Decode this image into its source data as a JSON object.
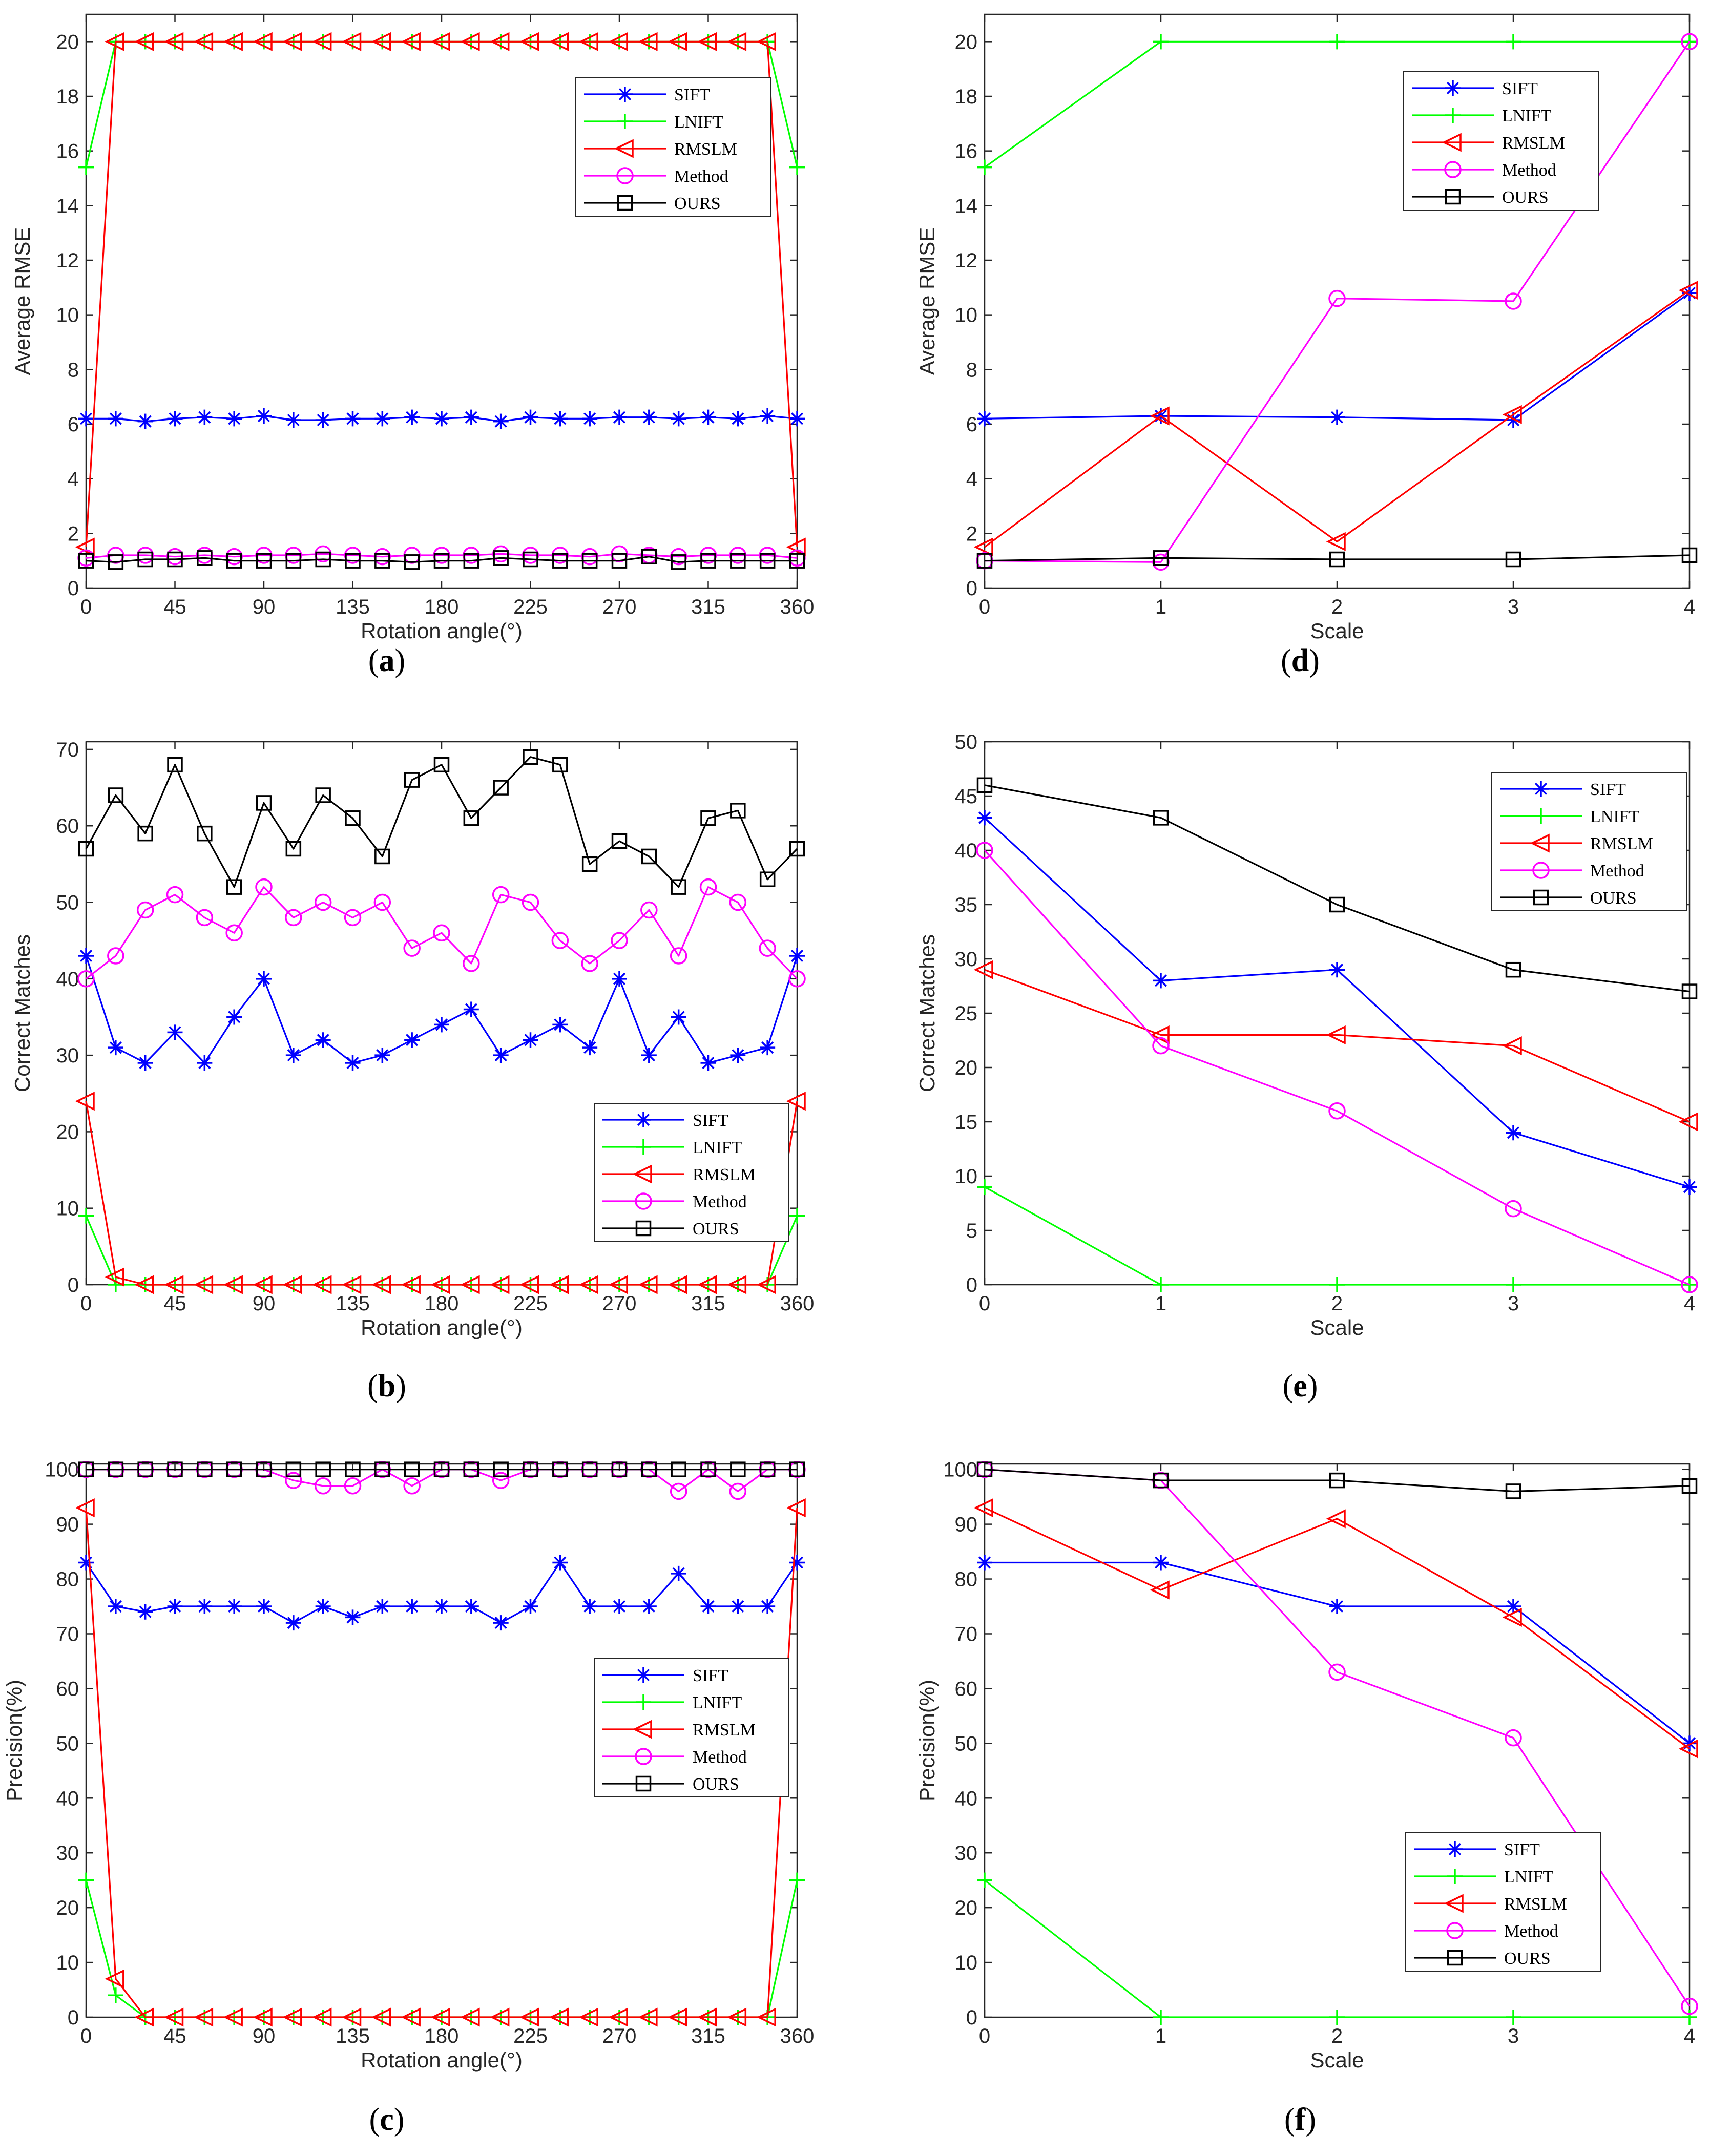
{
  "legend_labels": [
    "SIFT",
    "LNIFT",
    "RMSLM",
    "Method",
    "OURS"
  ],
  "series_colors": {
    "SIFT": "#0000ff",
    "LNIFT": "#00ff00",
    "RMSLM": "#ff0000",
    "Method": "#ff00ff",
    "OURS": "#000000"
  },
  "series_markers": {
    "SIFT": "asterisk",
    "LNIFT": "plus",
    "RMSLM": "triangle-left",
    "Method": "circle",
    "OURS": "square"
  },
  "chart_data": [
    {
      "id": "a",
      "caption_letter": "a",
      "type": "line",
      "xlabel": "Rotation angle(°)",
      "ylabel": "Average RMSE",
      "xlim": [
        0,
        360
      ],
      "ylim": [
        0,
        21
      ],
      "xticks": [
        0,
        45,
        90,
        135,
        180,
        225,
        270,
        315,
        360
      ],
      "yticks": [
        0,
        2,
        4,
        6,
        8,
        10,
        12,
        14,
        16,
        18,
        20
      ],
      "legend_position": "upper-right",
      "x": [
        0,
        15,
        30,
        45,
        60,
        75,
        90,
        105,
        120,
        135,
        150,
        165,
        180,
        195,
        210,
        225,
        240,
        255,
        270,
        285,
        300,
        315,
        330,
        345,
        360
      ],
      "series": [
        {
          "name": "SIFT",
          "values": [
            6.2,
            6.2,
            6.1,
            6.2,
            6.25,
            6.2,
            6.3,
            6.15,
            6.15,
            6.2,
            6.2,
            6.25,
            6.2,
            6.25,
            6.1,
            6.25,
            6.2,
            6.2,
            6.25,
            6.25,
            6.2,
            6.25,
            6.2,
            6.3,
            6.2
          ]
        },
        {
          "name": "LNIFT",
          "values": [
            15.4,
            20,
            20,
            20,
            20,
            20,
            20,
            20,
            20,
            20,
            20,
            20,
            20,
            20,
            20,
            20,
            20,
            20,
            20,
            20,
            20,
            20,
            20,
            20,
            15.4
          ]
        },
        {
          "name": "RMSLM",
          "values": [
            1.5,
            20,
            20,
            20,
            20,
            20,
            20,
            20,
            20,
            20,
            20,
            20,
            20,
            20,
            20,
            20,
            20,
            20,
            20,
            20,
            20,
            20,
            20,
            20,
            1.5
          ]
        },
        {
          "name": "Method",
          "values": [
            1.1,
            1.2,
            1.2,
            1.15,
            1.2,
            1.15,
            1.2,
            1.2,
            1.25,
            1.2,
            1.15,
            1.2,
            1.2,
            1.2,
            1.25,
            1.2,
            1.2,
            1.15,
            1.25,
            1.2,
            1.15,
            1.2,
            1.2,
            1.2,
            1.1
          ]
        },
        {
          "name": "OURS",
          "values": [
            1.0,
            0.95,
            1.05,
            1.05,
            1.1,
            1.0,
            1.0,
            1.0,
            1.05,
            1.0,
            1.0,
            0.95,
            1.0,
            1.0,
            1.1,
            1.05,
            1.0,
            1.0,
            1.0,
            1.15,
            0.95,
            1.0,
            1.0,
            1.0,
            1.0
          ]
        }
      ]
    },
    {
      "id": "b",
      "caption_letter": "b",
      "type": "line",
      "xlabel": "Rotation angle(°)",
      "ylabel": "Correct Matches",
      "xlim": [
        0,
        360
      ],
      "ylim": [
        0,
        71
      ],
      "xticks": [
        0,
        45,
        90,
        135,
        180,
        225,
        270,
        315,
        360
      ],
      "yticks": [
        0,
        10,
        20,
        30,
        40,
        50,
        60,
        70
      ],
      "legend_position": "lower-right",
      "x": [
        0,
        15,
        30,
        45,
        60,
        75,
        90,
        105,
        120,
        135,
        150,
        165,
        180,
        195,
        210,
        225,
        240,
        255,
        270,
        285,
        300,
        315,
        330,
        345,
        360
      ],
      "series": [
        {
          "name": "SIFT",
          "values": [
            43,
            31,
            29,
            33,
            29,
            35,
            40,
            30,
            32,
            29,
            30,
            32,
            34,
            36,
            30,
            32,
            34,
            31,
            40,
            30,
            35,
            29,
            30,
            31,
            43
          ]
        },
        {
          "name": "LNIFT",
          "values": [
            9,
            0,
            0,
            0,
            0,
            0,
            0,
            0,
            0,
            0,
            0,
            0,
            0,
            0,
            0,
            0,
            0,
            0,
            0,
            0,
            0,
            0,
            0,
            0,
            9
          ]
        },
        {
          "name": "RMSLM",
          "values": [
            24,
            1,
            0,
            0,
            0,
            0,
            0,
            0,
            0,
            0,
            0,
            0,
            0,
            0,
            0,
            0,
            0,
            0,
            0,
            0,
            0,
            0,
            0,
            0,
            24
          ]
        },
        {
          "name": "Method",
          "values": [
            40,
            43,
            49,
            51,
            48,
            46,
            52,
            48,
            50,
            48,
            50,
            44,
            46,
            42,
            51,
            50,
            45,
            42,
            45,
            49,
            43,
            52,
            50,
            44,
            40
          ]
        },
        {
          "name": "OURS",
          "values": [
            57,
            64,
            59,
            68,
            59,
            52,
            63,
            57,
            64,
            61,
            56,
            66,
            68,
            61,
            65,
            69,
            68,
            55,
            58,
            56,
            52,
            61,
            62,
            53,
            57
          ]
        }
      ]
    },
    {
      "id": "c",
      "caption_letter": "c",
      "type": "line",
      "xlabel": "Rotation angle(°)",
      "ylabel": "Precision(%)",
      "xlim": [
        0,
        360
      ],
      "ylim": [
        0,
        101
      ],
      "xticks": [
        0,
        45,
        90,
        135,
        180,
        225,
        270,
        315,
        360
      ],
      "yticks": [
        0,
        10,
        20,
        30,
        40,
        50,
        60,
        70,
        80,
        90,
        100
      ],
      "legend_position": "center-right",
      "x": [
        0,
        15,
        30,
        45,
        60,
        75,
        90,
        105,
        120,
        135,
        150,
        165,
        180,
        195,
        210,
        225,
        240,
        255,
        270,
        285,
        300,
        315,
        330,
        345,
        360
      ],
      "series": [
        {
          "name": "SIFT",
          "values": [
            83,
            75,
            74,
            75,
            75,
            75,
            75,
            72,
            75,
            73,
            75,
            75,
            75,
            75,
            72,
            75,
            83,
            75,
            75,
            75,
            81,
            75,
            75,
            75,
            83
          ]
        },
        {
          "name": "LNIFT",
          "values": [
            25,
            4,
            0,
            0,
            0,
            0,
            0,
            0,
            0,
            0,
            0,
            0,
            0,
            0,
            0,
            0,
            0,
            0,
            0,
            0,
            0,
            0,
            0,
            0,
            25
          ]
        },
        {
          "name": "RMSLM",
          "values": [
            93,
            7,
            0,
            0,
            0,
            0,
            0,
            0,
            0,
            0,
            0,
            0,
            0,
            0,
            0,
            0,
            0,
            0,
            0,
            0,
            0,
            0,
            0,
            0,
            93
          ]
        },
        {
          "name": "Method",
          "values": [
            100,
            100,
            100,
            100,
            100,
            100,
            100,
            98,
            97,
            97,
            100,
            97,
            100,
            100,
            98,
            100,
            100,
            100,
            100,
            100,
            96,
            100,
            96,
            100,
            100
          ]
        },
        {
          "name": "OURS",
          "values": [
            100,
            100,
            100,
            100,
            100,
            100,
            100,
            100,
            100,
            100,
            100,
            100,
            100,
            100,
            100,
            100,
            100,
            100,
            100,
            100,
            100,
            100,
            100,
            100,
            100
          ]
        }
      ]
    },
    {
      "id": "d",
      "caption_letter": "d",
      "type": "line",
      "xlabel": "Scale",
      "ylabel": "Average RMSE",
      "xlim": [
        0,
        4
      ],
      "ylim": [
        0,
        21
      ],
      "xticks": [
        0,
        1,
        2,
        3,
        4
      ],
      "yticks": [
        0,
        2,
        4,
        6,
        8,
        10,
        12,
        14,
        16,
        18,
        20
      ],
      "legend_position": "upper-right",
      "x": [
        0,
        1,
        2,
        3,
        4
      ],
      "series": [
        {
          "name": "SIFT",
          "values": [
            6.2,
            6.3,
            6.25,
            6.15,
            10.8
          ]
        },
        {
          "name": "LNIFT",
          "values": [
            15.4,
            20,
            20,
            20,
            20
          ]
        },
        {
          "name": "RMSLM",
          "values": [
            1.5,
            6.3,
            1.7,
            6.35,
            10.9
          ]
        },
        {
          "name": "Method",
          "values": [
            1.0,
            0.95,
            10.6,
            10.5,
            20
          ]
        },
        {
          "name": "OURS",
          "values": [
            1.0,
            1.1,
            1.05,
            1.05,
            1.2
          ]
        }
      ]
    },
    {
      "id": "e",
      "caption_letter": "e",
      "type": "line",
      "xlabel": "Scale",
      "ylabel": "Correct Matches",
      "xlim": [
        0,
        4
      ],
      "ylim": [
        0,
        50
      ],
      "xticks": [
        0,
        1,
        2,
        3,
        4
      ],
      "yticks": [
        0,
        5,
        10,
        15,
        20,
        25,
        30,
        35,
        40,
        45,
        50
      ],
      "legend_position": "upper-right",
      "x": [
        0,
        1,
        2,
        3,
        4
      ],
      "series": [
        {
          "name": "SIFT",
          "values": [
            43,
            28,
            29,
            14,
            9
          ]
        },
        {
          "name": "LNIFT",
          "values": [
            9,
            0,
            0,
            0,
            0
          ]
        },
        {
          "name": "RMSLM",
          "values": [
            29,
            23,
            23,
            22,
            15
          ]
        },
        {
          "name": "Method",
          "values": [
            40,
            22,
            16,
            7,
            0
          ]
        },
        {
          "name": "OURS",
          "values": [
            46,
            43,
            35,
            29,
            27
          ]
        }
      ]
    },
    {
      "id": "f",
      "caption_letter": "f",
      "type": "line",
      "xlabel": "Scale",
      "ylabel": "Precision(%)",
      "xlim": [
        0,
        4
      ],
      "ylim": [
        0,
        101
      ],
      "xticks": [
        0,
        1,
        2,
        3,
        4
      ],
      "yticks": [
        0,
        10,
        20,
        30,
        40,
        50,
        60,
        70,
        80,
        90,
        100
      ],
      "legend_position": "lower-right",
      "x": [
        0,
        1,
        2,
        3,
        4
      ],
      "series": [
        {
          "name": "SIFT",
          "values": [
            83,
            83,
            75,
            75,
            50
          ]
        },
        {
          "name": "LNIFT",
          "values": [
            25,
            0,
            0,
            0,
            0
          ]
        },
        {
          "name": "RMSLM",
          "values": [
            93,
            78,
            91,
            73,
            49
          ]
        },
        {
          "name": "Method",
          "values": [
            100,
            98,
            63,
            51,
            2
          ]
        },
        {
          "name": "OURS",
          "values": [
            100,
            98,
            98,
            96,
            97
          ]
        }
      ]
    }
  ]
}
